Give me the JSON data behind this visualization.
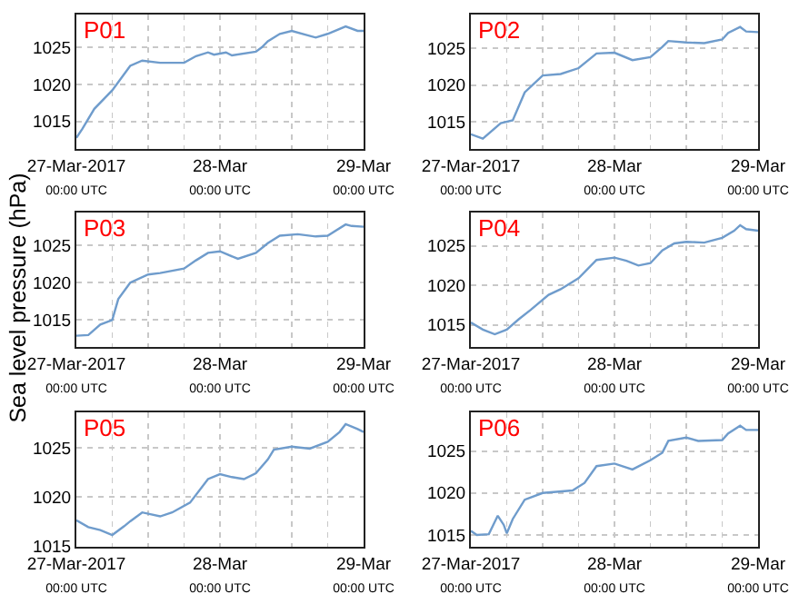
{
  "chart_data": [
    {
      "type": "line",
      "title": "P01",
      "xlim": [
        "2017-03-27T00:00",
        "2017-03-29T00:00"
      ],
      "ylim": [
        1011.3,
        1029.4
      ],
      "yticks": [
        1015,
        1020,
        1025
      ],
      "grid": true,
      "xticks": [
        {
          "value": "2017-03-27T00:00",
          "label": "27-Mar-2017\n00:00 UTC"
        },
        {
          "value": "2017-03-27T06:00",
          "label": null
        },
        {
          "value": "2017-03-27T12:00",
          "label": null
        },
        {
          "value": "2017-03-27T18:00",
          "label": null
        },
        {
          "value": "2017-03-28T00:00",
          "label": "28-Mar\n00:00 UTC"
        },
        {
          "value": "2017-03-28T06:00",
          "label": null
        },
        {
          "value": "2017-03-28T12:00",
          "label": null
        },
        {
          "value": "2017-03-28T18:00",
          "label": null
        },
        {
          "value": "2017-03-29T00:00",
          "label": "29-Mar\n00:00 UTC"
        }
      ],
      "x": [
        "2017-03-27T00:00",
        "2017-03-27T01:00",
        "2017-03-27T03:00",
        "2017-03-27T06:00",
        "2017-03-27T09:00",
        "2017-03-27T11:00",
        "2017-03-27T14:00",
        "2017-03-27T18:00",
        "2017-03-27T20:00",
        "2017-03-27T22:00",
        "2017-03-27T23:00",
        "2017-03-28T01:00",
        "2017-03-28T02:00",
        "2017-03-28T06:00",
        "2017-03-28T07:00",
        "2017-03-28T08:00",
        "2017-03-28T10:00",
        "2017-03-28T12:00",
        "2017-03-28T16:00",
        "2017-03-28T18:00",
        "2017-03-28T21:00",
        "2017-03-28T23:00",
        "2017-03-29T00:00"
      ],
      "series": [
        {
          "color": "#6f9ccc",
          "values": [
            1012.8,
            1014.0,
            1016.7,
            1019.2,
            1022.5,
            1023.2,
            1022.9,
            1022.9,
            1023.8,
            1024.3,
            1024.0,
            1024.3,
            1023.9,
            1024.4,
            1025.0,
            1025.8,
            1026.8,
            1027.2,
            1026.3,
            1026.8,
            1027.8,
            1027.2,
            1027.2
          ]
        }
      ]
    },
    {
      "type": "line",
      "title": "P02",
      "xlim": [
        "2017-03-27T00:00",
        "2017-03-29T00:00"
      ],
      "ylim": [
        1011.3,
        1029.6
      ],
      "yticks": [
        1015,
        1020,
        1025
      ],
      "grid": true,
      "xticks": [
        {
          "value": "2017-03-27T00:00",
          "label": "27-Mar-2017\n00:00 UTC"
        },
        {
          "value": "2017-03-27T06:00",
          "label": null
        },
        {
          "value": "2017-03-27T12:00",
          "label": null
        },
        {
          "value": "2017-03-27T18:00",
          "label": null
        },
        {
          "value": "2017-03-28T00:00",
          "label": "28-Mar\n00:00 UTC"
        },
        {
          "value": "2017-03-28T06:00",
          "label": null
        },
        {
          "value": "2017-03-28T12:00",
          "label": null
        },
        {
          "value": "2017-03-28T18:00",
          "label": null
        },
        {
          "value": "2017-03-29T00:00",
          "label": "29-Mar\n00:00 UTC"
        }
      ],
      "x": [
        "2017-03-27T00:00",
        "2017-03-27T02:00",
        "2017-03-27T05:00",
        "2017-03-27T07:00",
        "2017-03-27T09:00",
        "2017-03-27T12:00",
        "2017-03-27T15:00",
        "2017-03-27T18:00",
        "2017-03-27T21:00",
        "2017-03-28T00:00",
        "2017-03-28T03:00",
        "2017-03-28T06:00",
        "2017-03-28T08:00",
        "2017-03-28T09:00",
        "2017-03-28T12:00",
        "2017-03-28T15:00",
        "2017-03-28T18:00",
        "2017-03-28T19:00",
        "2017-03-28T21:00",
        "2017-03-28T22:00",
        "2017-03-29T00:00"
      ],
      "series": [
        {
          "color": "#6f9ccc",
          "values": [
            1013.3,
            1012.7,
            1014.8,
            1015.2,
            1019.0,
            1021.3,
            1021.5,
            1022.3,
            1024.3,
            1024.4,
            1023.4,
            1023.8,
            1025.2,
            1026.0,
            1025.8,
            1025.7,
            1026.2,
            1027.1,
            1027.9,
            1027.3,
            1027.2
          ]
        }
      ]
    },
    {
      "type": "line",
      "title": "P03",
      "ylabel": "Sea level pressure (hPa)",
      "xlim": [
        "2017-03-27T00:00",
        "2017-03-29T00:00"
      ],
      "ylim": [
        1011.4,
        1029.4
      ],
      "yticks": [
        1015,
        1020,
        1025
      ],
      "grid": true,
      "xticks": [
        {
          "value": "2017-03-27T00:00",
          "label": "27-Mar-2017\n00:00 UTC"
        },
        {
          "value": "2017-03-27T06:00",
          "label": null
        },
        {
          "value": "2017-03-27T12:00",
          "label": null
        },
        {
          "value": "2017-03-27T18:00",
          "label": null
        },
        {
          "value": "2017-03-28T00:00",
          "label": "28-Mar\n00:00 UTC"
        },
        {
          "value": "2017-03-28T06:00",
          "label": null
        },
        {
          "value": "2017-03-28T12:00",
          "label": null
        },
        {
          "value": "2017-03-28T18:00",
          "label": null
        },
        {
          "value": "2017-03-29T00:00",
          "label": "29-Mar\n00:00 UTC"
        }
      ],
      "x": [
        "2017-03-27T00:00",
        "2017-03-27T02:00",
        "2017-03-27T04:00",
        "2017-03-27T06:00",
        "2017-03-27T07:00",
        "2017-03-27T09:00",
        "2017-03-27T12:00",
        "2017-03-27T14:00",
        "2017-03-27T18:00",
        "2017-03-27T20:00",
        "2017-03-27T22:00",
        "2017-03-28T00:00",
        "2017-03-28T03:00",
        "2017-03-28T06:00",
        "2017-03-28T08:00",
        "2017-03-28T10:00",
        "2017-03-28T13:00",
        "2017-03-28T16:00",
        "2017-03-28T18:00",
        "2017-03-28T21:00",
        "2017-03-28T22:00",
        "2017-03-29T00:00"
      ],
      "series": [
        {
          "color": "#6f9ccc",
          "values": [
            1012.9,
            1013.0,
            1014.4,
            1015.0,
            1017.8,
            1020.0,
            1021.1,
            1021.3,
            1021.9,
            1023.0,
            1024.0,
            1024.2,
            1023.2,
            1024.0,
            1025.3,
            1026.3,
            1026.5,
            1026.2,
            1026.3,
            1027.8,
            1027.6,
            1027.5
          ]
        }
      ]
    },
    {
      "type": "line",
      "title": "P04",
      "xlim": [
        "2017-03-27T00:00",
        "2017-03-29T00:00"
      ],
      "ylim": [
        1012.2,
        1029.2
      ],
      "yticks": [
        1015,
        1020,
        1025
      ],
      "grid": true,
      "xticks": [
        {
          "value": "2017-03-27T00:00",
          "label": "27-Mar-2017\n00:00 UTC"
        },
        {
          "value": "2017-03-27T06:00",
          "label": null
        },
        {
          "value": "2017-03-27T12:00",
          "label": null
        },
        {
          "value": "2017-03-27T18:00",
          "label": null
        },
        {
          "value": "2017-03-28T00:00",
          "label": "28-Mar\n00:00 UTC"
        },
        {
          "value": "2017-03-28T06:00",
          "label": null
        },
        {
          "value": "2017-03-28T12:00",
          "label": null
        },
        {
          "value": "2017-03-28T18:00",
          "label": null
        },
        {
          "value": "2017-03-29T00:00",
          "label": "29-Mar\n00:00 UTC"
        }
      ],
      "x": [
        "2017-03-27T00:00",
        "2017-03-27T02:00",
        "2017-03-27T04:00",
        "2017-03-27T06:00",
        "2017-03-27T08:00",
        "2017-03-27T10:00",
        "2017-03-27T13:00",
        "2017-03-27T15:00",
        "2017-03-27T18:00",
        "2017-03-27T21:00",
        "2017-03-28T00:00",
        "2017-03-28T02:00",
        "2017-03-28T04:00",
        "2017-03-28T06:00",
        "2017-03-28T08:00",
        "2017-03-28T10:00",
        "2017-03-28T12:00",
        "2017-03-28T15:00",
        "2017-03-28T18:00",
        "2017-03-28T20:00",
        "2017-03-28T21:00",
        "2017-03-28T22:00",
        "2017-03-29T00:00"
      ],
      "series": [
        {
          "color": "#6f9ccc",
          "values": [
            1015.3,
            1014.4,
            1013.8,
            1014.4,
            1015.7,
            1016.9,
            1018.8,
            1019.5,
            1020.9,
            1023.2,
            1023.5,
            1023.1,
            1022.5,
            1022.8,
            1024.4,
            1025.3,
            1025.5,
            1025.4,
            1026.0,
            1026.9,
            1027.6,
            1027.1,
            1026.9
          ]
        }
      ]
    },
    {
      "type": "line",
      "title": "P05",
      "xlim": [
        "2017-03-27T00:00",
        "2017-03-29T00:00"
      ],
      "ylim": [
        1014.9,
        1028.6
      ],
      "yticks": [
        1015,
        1020,
        1025
      ],
      "grid": true,
      "xticks": [
        {
          "value": "2017-03-27T00:00",
          "label": "27-Mar-2017\n00:00 UTC"
        },
        {
          "value": "2017-03-27T06:00",
          "label": null
        },
        {
          "value": "2017-03-27T12:00",
          "label": null
        },
        {
          "value": "2017-03-27T18:00",
          "label": null
        },
        {
          "value": "2017-03-28T00:00",
          "label": "28-Mar\n00:00 UTC"
        },
        {
          "value": "2017-03-28T06:00",
          "label": null
        },
        {
          "value": "2017-03-28T12:00",
          "label": null
        },
        {
          "value": "2017-03-28T18:00",
          "label": null
        },
        {
          "value": "2017-03-29T00:00",
          "label": "29-Mar\n00:00 UTC"
        }
      ],
      "x": [
        "2017-03-27T00:00",
        "2017-03-27T02:00",
        "2017-03-27T04:00",
        "2017-03-27T06:00",
        "2017-03-27T08:00",
        "2017-03-27T09:00",
        "2017-03-27T11:00",
        "2017-03-27T14:00",
        "2017-03-27T16:00",
        "2017-03-27T19:00",
        "2017-03-27T22:00",
        "2017-03-28T00:00",
        "2017-03-28T02:00",
        "2017-03-28T04:00",
        "2017-03-28T06:00",
        "2017-03-28T08:00",
        "2017-03-28T09:00",
        "2017-03-28T12:00",
        "2017-03-28T15:00",
        "2017-03-28T18:00",
        "2017-03-28T20:00",
        "2017-03-28T21:00",
        "2017-03-28T23:00",
        "2017-03-29T00:00"
      ],
      "series": [
        {
          "color": "#6f9ccc",
          "values": [
            1017.6,
            1016.9,
            1016.6,
            1016.1,
            1017.0,
            1017.5,
            1018.4,
            1018.0,
            1018.4,
            1019.4,
            1021.8,
            1022.3,
            1022.0,
            1021.8,
            1022.4,
            1023.8,
            1024.8,
            1025.1,
            1024.9,
            1025.6,
            1026.6,
            1027.4,
            1026.9,
            1026.6
          ]
        }
      ]
    },
    {
      "type": "line",
      "title": "P06",
      "xlim": [
        "2017-03-27T00:00",
        "2017-03-29T00:00"
      ],
      "ylim": [
        1013.6,
        1029.6
      ],
      "yticks": [
        1015,
        1020,
        1025
      ],
      "grid": true,
      "xticks": [
        {
          "value": "2017-03-27T00:00",
          "label": "27-Mar-2017\n00:00 UTC"
        },
        {
          "value": "2017-03-27T06:00",
          "label": null
        },
        {
          "value": "2017-03-27T12:00",
          "label": null
        },
        {
          "value": "2017-03-27T18:00",
          "label": null
        },
        {
          "value": "2017-03-28T00:00",
          "label": "28-Mar\n00:00 UTC"
        },
        {
          "value": "2017-03-28T06:00",
          "label": null
        },
        {
          "value": "2017-03-28T12:00",
          "label": null
        },
        {
          "value": "2017-03-28T18:00",
          "label": null
        },
        {
          "value": "2017-03-29T00:00",
          "label": "29-Mar\n00:00 UTC"
        }
      ],
      "x": [
        "2017-03-27T00:00",
        "2017-03-27T01:00",
        "2017-03-27T03:00",
        "2017-03-27T04:30",
        "2017-03-27T05:30",
        "2017-03-27T06:00",
        "2017-03-27T07:00",
        "2017-03-27T09:00",
        "2017-03-27T12:00",
        "2017-03-27T17:00",
        "2017-03-27T19:00",
        "2017-03-27T21:00",
        "2017-03-28T00:00",
        "2017-03-28T03:00",
        "2017-03-28T06:00",
        "2017-03-28T08:00",
        "2017-03-28T09:00",
        "2017-03-28T12:00",
        "2017-03-28T14:00",
        "2017-03-28T18:00",
        "2017-03-28T19:00",
        "2017-03-28T21:00",
        "2017-03-28T22:00",
        "2017-03-29T00:00"
      ],
      "series": [
        {
          "color": "#6f9ccc",
          "values": [
            1015.5,
            1015.0,
            1015.1,
            1017.3,
            1016.2,
            1015.2,
            1016.9,
            1019.2,
            1020.0,
            1020.3,
            1021.2,
            1023.2,
            1023.5,
            1022.8,
            1023.9,
            1024.8,
            1026.2,
            1026.6,
            1026.2,
            1026.3,
            1027.1,
            1028.0,
            1027.5,
            1027.5
          ]
        }
      ]
    }
  ]
}
